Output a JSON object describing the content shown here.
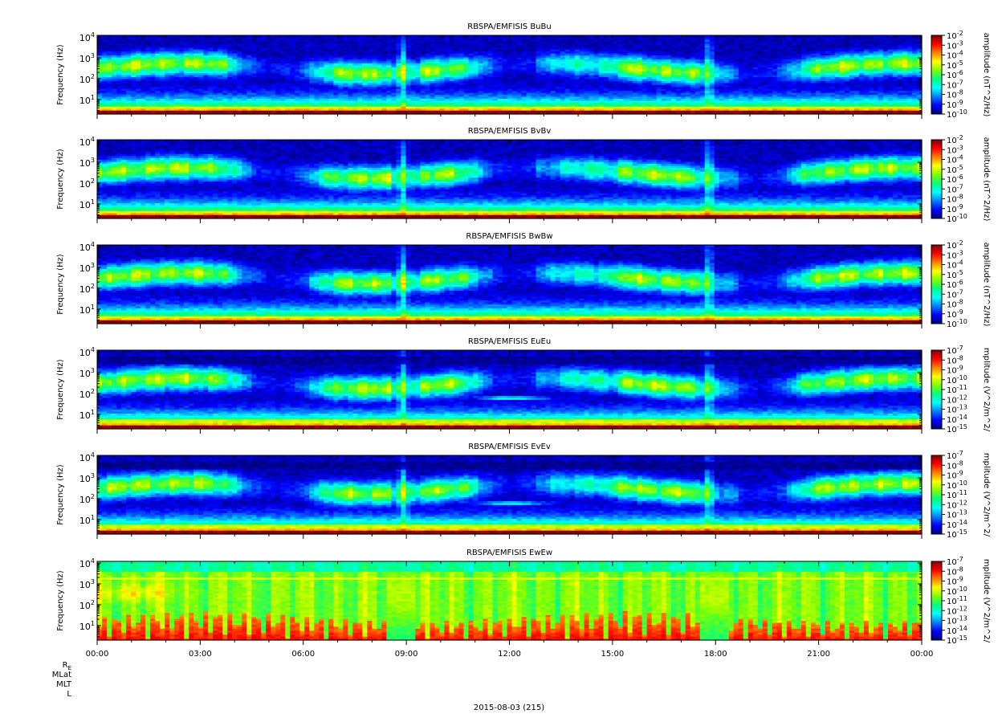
{
  "chart_data": {
    "type": "heatmap",
    "figure_type": "multi-panel spectrogram",
    "panels": [
      {
        "title": "RBSPA/EMFISIS  BuBu",
        "ylabel": "Frequency (Hz)",
        "yscale": "log",
        "ylim": [
          2,
          12000
        ],
        "yticks": [
          {
            "base": "10",
            "exp": "1"
          },
          {
            "base": "10",
            "exp": "2"
          },
          {
            "base": "10",
            "exp": "3"
          },
          {
            "base": "10",
            "exp": "4"
          }
        ],
        "colorbar_label": "amplitude (nT^2/Hz)",
        "colorbar_scale": "log",
        "colorbar_range": [
          -10,
          -2
        ],
        "colorbar_ticks": [
          "-2",
          "-3",
          "-4",
          "-5",
          "-6",
          "-7",
          "-8",
          "-9",
          "-10"
        ],
        "kind": "B"
      },
      {
        "title": "RBSPA/EMFISIS  BvBv",
        "ylabel": "Frequency (Hz)",
        "yscale": "log",
        "ylim": [
          2,
          12000
        ],
        "yticks": [
          {
            "base": "10",
            "exp": "1"
          },
          {
            "base": "10",
            "exp": "2"
          },
          {
            "base": "10",
            "exp": "3"
          },
          {
            "base": "10",
            "exp": "4"
          }
        ],
        "colorbar_label": "amplitude (nT^2/Hz)",
        "colorbar_scale": "log",
        "colorbar_range": [
          -10,
          -2
        ],
        "colorbar_ticks": [
          "-2",
          "-3",
          "-4",
          "-5",
          "-6",
          "-7",
          "-8",
          "-9",
          "-10"
        ],
        "kind": "B"
      },
      {
        "title": "RBSPA/EMFISIS  BwBw",
        "ylabel": "Frequency (Hz)",
        "yscale": "log",
        "ylim": [
          2,
          12000
        ],
        "yticks": [
          {
            "base": "10",
            "exp": "1"
          },
          {
            "base": "10",
            "exp": "2"
          },
          {
            "base": "10",
            "exp": "3"
          },
          {
            "base": "10",
            "exp": "4"
          }
        ],
        "colorbar_label": "amplitude (nT^2/Hz)",
        "colorbar_scale": "log",
        "colorbar_range": [
          -10,
          -2
        ],
        "colorbar_ticks": [
          "-2",
          "-3",
          "-4",
          "-5",
          "-6",
          "-7",
          "-8",
          "-9",
          "-10"
        ],
        "kind": "B"
      },
      {
        "title": "RBSPA/EMFISIS  EuEu",
        "ylabel": "Frequency (Hz)",
        "yscale": "log",
        "ylim": [
          2,
          12000
        ],
        "yticks": [
          {
            "base": "10",
            "exp": "1"
          },
          {
            "base": "10",
            "exp": "2"
          },
          {
            "base": "10",
            "exp": "3"
          },
          {
            "base": "10",
            "exp": "4"
          }
        ],
        "colorbar_label": "mplitude (V^2/m^2/",
        "colorbar_scale": "log",
        "colorbar_range": [
          -15,
          -7
        ],
        "colorbar_ticks": [
          "-7",
          "-8",
          "-9",
          "-10",
          "-11",
          "-12",
          "-13",
          "-14",
          "-15"
        ],
        "kind": "E"
      },
      {
        "title": "RBSPA/EMFISIS  EvEv",
        "ylabel": "Frequency (Hz)",
        "yscale": "log",
        "ylim": [
          2,
          12000
        ],
        "yticks": [
          {
            "base": "10",
            "exp": "1"
          },
          {
            "base": "10",
            "exp": "2"
          },
          {
            "base": "10",
            "exp": "3"
          },
          {
            "base": "10",
            "exp": "4"
          }
        ],
        "colorbar_label": "mplitude (V^2/m^2/",
        "colorbar_scale": "log",
        "colorbar_range": [
          -15,
          -7
        ],
        "colorbar_ticks": [
          "-7",
          "-8",
          "-9",
          "-10",
          "-11",
          "-12",
          "-13",
          "-14",
          "-15"
        ],
        "kind": "E"
      },
      {
        "title": "RBSPA/EMFISIS  EwEw",
        "ylabel": "Frequency (Hz)",
        "yscale": "log",
        "ylim": [
          2,
          12000
        ],
        "yticks": [
          {
            "base": "10",
            "exp": "1"
          },
          {
            "base": "10",
            "exp": "2"
          },
          {
            "base": "10",
            "exp": "3"
          },
          {
            "base": "10",
            "exp": "4"
          }
        ],
        "colorbar_label": "mplitude (V^2/m^2/",
        "colorbar_scale": "log",
        "colorbar_range": [
          -15,
          -7
        ],
        "colorbar_ticks": [
          "-7",
          "-8",
          "-9",
          "-10",
          "-11",
          "-12",
          "-13",
          "-14",
          "-15"
        ],
        "kind": "Ew"
      }
    ],
    "x_axis": {
      "range_hours": [
        0,
        24
      ],
      "ticks": [
        {
          "hour": 0,
          "label": "00:00"
        },
        {
          "hour": 3,
          "label": "03:00"
        },
        {
          "hour": 6,
          "label": "06:00"
        },
        {
          "hour": 9,
          "label": "09:00"
        },
        {
          "hour": 12,
          "label": "12:00"
        },
        {
          "hour": 15,
          "label": "15:00"
        },
        {
          "hour": 18,
          "label": "18:00"
        },
        {
          "hour": 21,
          "label": "21:00"
        },
        {
          "hour": 24,
          "label": "00:00"
        }
      ],
      "minor_tick_interval_hours": 1
    },
    "ephemeris_labels": [
      {
        "main": "R",
        "sub": "E"
      },
      {
        "main": "MLat",
        "sub": ""
      },
      {
        "main": "MLT",
        "sub": ""
      },
      {
        "main": "L",
        "sub": ""
      }
    ],
    "date_label": "2015-08-03 (215)",
    "colormap": [
      "#000080",
      "#0000ff",
      "#0080ff",
      "#00ffff",
      "#00ff80",
      "#80ff00",
      "#ffff00",
      "#ff8000",
      "#ff0000",
      "#800000"
    ],
    "background_color": "#ffffff"
  }
}
